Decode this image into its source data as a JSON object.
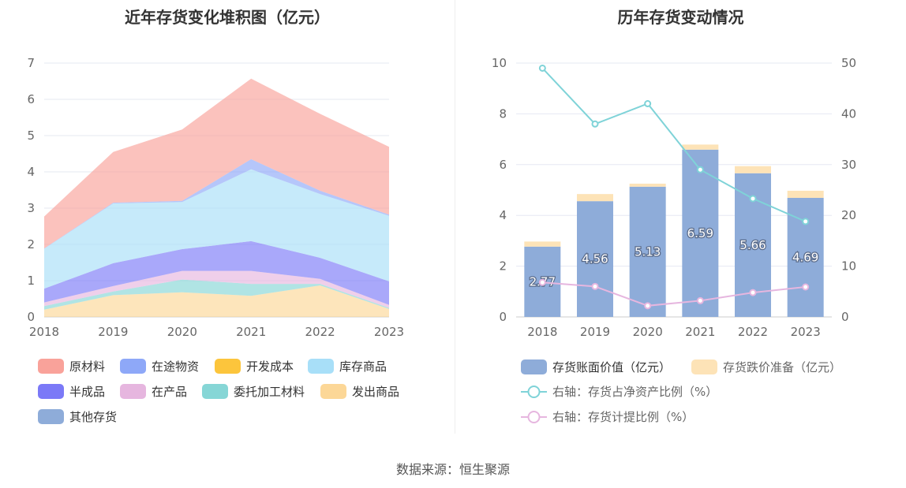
{
  "left_chart": {
    "title": "近年存货变化堆积图（亿元）",
    "chart_data": {
      "type": "area",
      "stacked": true,
      "x": [
        "2018",
        "2019",
        "2020",
        "2021",
        "2022",
        "2023"
      ],
      "ylim": [
        0,
        7
      ],
      "yticks": [
        0,
        1,
        2,
        3,
        4,
        5,
        6,
        7
      ],
      "grid": true,
      "legend_position": "bottom",
      "series": [
        {
          "name": "原材料",
          "color": "#f9a29a",
          "values": [
            0.88,
            1.4,
            1.97,
            2.22,
            2.12,
            1.87
          ]
        },
        {
          "name": "在途物资",
          "color": "#8ea8f8",
          "values": [
            0.01,
            0.02,
            0.03,
            0.28,
            0.09,
            0.03
          ]
        },
        {
          "name": "开发成本",
          "color": "#fcc53c",
          "values": [
            0,
            0,
            0,
            0,
            0,
            0
          ]
        },
        {
          "name": "库存商品",
          "color": "#a8dff8",
          "values": [
            1.1,
            1.65,
            1.3,
            1.98,
            1.76,
            1.81
          ]
        },
        {
          "name": "半成品",
          "color": "#7b79f7",
          "values": [
            0.38,
            0.63,
            0.6,
            0.82,
            0.58,
            0.65
          ]
        },
        {
          "name": "在产品",
          "color": "#e6b6df",
          "values": [
            0.1,
            0.15,
            0.24,
            0.36,
            0.14,
            0.08
          ]
        },
        {
          "name": "委托加工材料",
          "color": "#86d6d6",
          "values": [
            0.1,
            0.1,
            0.35,
            0.33,
            0.04,
            0.03
          ]
        },
        {
          "name": "发出商品",
          "color": "#fcd797",
          "values": [
            0.2,
            0.6,
            0.68,
            0.58,
            0.87,
            0.22
          ]
        },
        {
          "name": "其他存货",
          "color": "#8eacd9",
          "values": [
            0,
            0,
            0,
            0,
            0,
            0
          ]
        }
      ]
    }
  },
  "right_chart": {
    "title": "历年存货变动情况",
    "chart_data": {
      "type": "bar",
      "categories": [
        "2018",
        "2019",
        "2020",
        "2021",
        "2022",
        "2023"
      ],
      "ylim": [
        0,
        10
      ],
      "yticks": [
        0,
        2,
        4,
        6,
        8,
        10
      ],
      "y2lim": [
        0,
        50
      ],
      "y2ticks": [
        0,
        10,
        20,
        30,
        40,
        50
      ],
      "grid": true,
      "legend_position": "bottom",
      "bar_series": [
        {
          "name": "存货账面价值（亿元）",
          "color": "#8eacd9",
          "values": [
            2.77,
            4.56,
            5.13,
            6.59,
            5.66,
            4.69
          ],
          "labels": [
            "2.77",
            "4.56",
            "5.13",
            "6.59",
            "5.66",
            "4.69"
          ]
        },
        {
          "name": "存货跌价准备（亿元）",
          "color": "#fde3b7",
          "values": [
            0.2,
            0.28,
            0.12,
            0.2,
            0.28,
            0.28
          ]
        }
      ],
      "line_series": [
        {
          "name": "右轴：存货占净资产比例（%）",
          "color": "#7fd3d8",
          "values": [
            49.0,
            38.0,
            42.0,
            29.0,
            23.3,
            18.8
          ]
        },
        {
          "name": "右轴：存货计提比例（%）",
          "color": "#e6b6df",
          "values": [
            6.8,
            6.0,
            2.2,
            3.2,
            4.8,
            5.9
          ]
        }
      ]
    }
  },
  "source_text": "数据来源：恒生聚源"
}
